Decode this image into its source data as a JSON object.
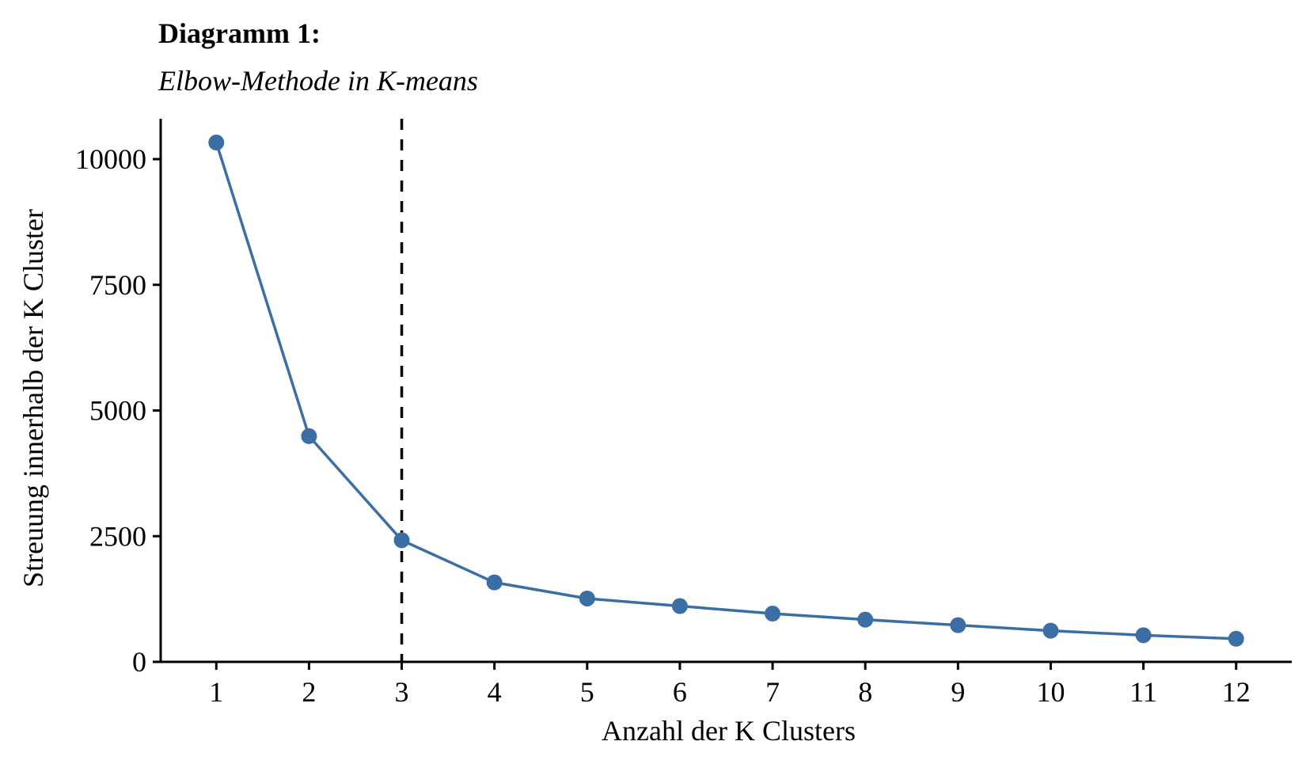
{
  "chart_data": {
    "type": "line",
    "title": "Diagramm 1:",
    "subtitle": "Elbow-Methode in K-means",
    "xlabel": "Anzahl der K Clusters",
    "ylabel": "Streuung innerhalb der K Cluster",
    "x": [
      1,
      2,
      3,
      4,
      5,
      6,
      7,
      8,
      9,
      10,
      11,
      12
    ],
    "series": [
      {
        "values": [
          10330,
          4490,
          2420,
          1580,
          1260,
          1110,
          960,
          840,
          730,
          620,
          530,
          460
        ],
        "color": "#3b6ea5"
      }
    ],
    "xticks": [
      "1",
      "2",
      "3",
      "4",
      "5",
      "6",
      "7",
      "8",
      "9",
      "10",
      "11",
      "12"
    ],
    "yticks": [
      {
        "value": 0,
        "label": "0"
      },
      {
        "value": 2500,
        "label": "2500"
      },
      {
        "value": 5000,
        "label": "5000"
      },
      {
        "value": 7500,
        "label": "7500"
      },
      {
        "value": 10000,
        "label": "10000"
      }
    ],
    "xlim": [
      0.4,
      12.6
    ],
    "ylim": [
      0,
      10800
    ],
    "vline": {
      "x": 3,
      "style": "dashed"
    },
    "grid": false,
    "legend": "none"
  }
}
